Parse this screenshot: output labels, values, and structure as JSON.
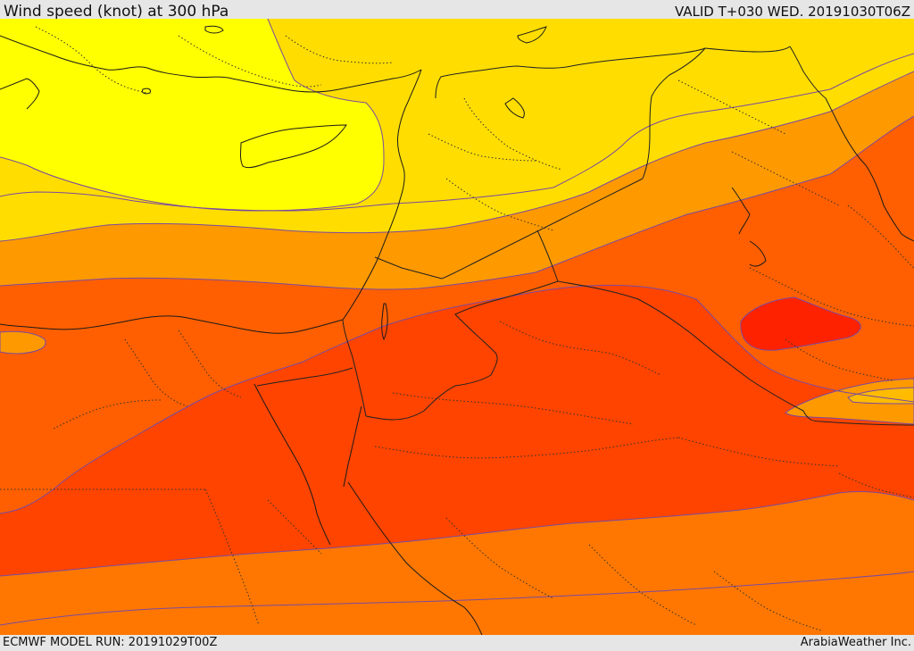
{
  "header": {
    "title": "Wind speed (knot) at 300 hPa",
    "valid": "VALID T+030 WED. 20191030T06Z"
  },
  "footer": {
    "model_run": "ECMWF MODEL RUN: 20191029T00Z",
    "credit": "ArabiaWeather Inc."
  },
  "colors": {
    "band_1": "#ffff00",
    "band_2": "#ffdd00",
    "band_3": "#ffbb00",
    "band_4": "#ff9900",
    "band_5": "#ff7700",
    "band_6": "#ff5f00",
    "band_7": "#ff4400",
    "band_8": "#ff2200",
    "contour": "#7a4aa0",
    "coastline": "#1a1a1a",
    "border": "#222222"
  }
}
